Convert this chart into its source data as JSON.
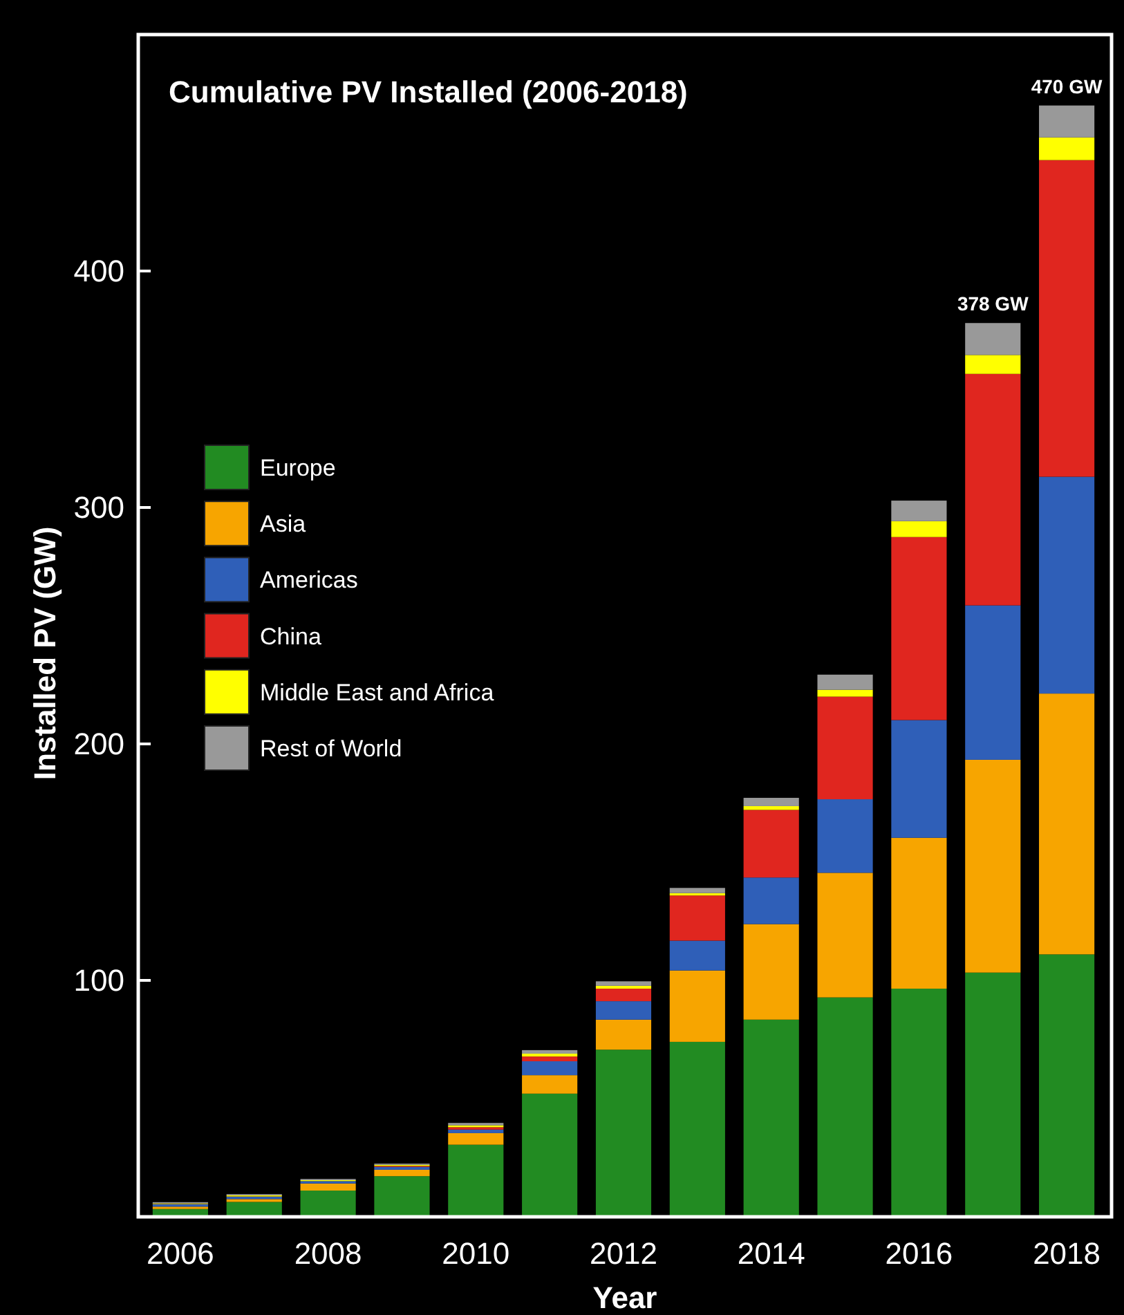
{
  "chart_data": {
    "type": "bar",
    "title": "Cumulative PV Installed (2006-2018)",
    "xlabel": "Year",
    "ylabel": "Installed PV (GW)",
    "categories": [
      "2006",
      null,
      "2008",
      null,
      "2010",
      null,
      "2012",
      null,
      "2014",
      null,
      "2016",
      null,
      "2018"
    ],
    "stacked": true,
    "ylim": [
      0,
      500
    ],
    "yticks": [
      100,
      200,
      300,
      400
    ],
    "legend": "left",
    "grid": false,
    "series": [
      {
        "name": "Europe",
        "color": "#228b22",
        "values": [
          3.3,
          6.3,
          11.1,
          17.2,
          30.5,
          52.1,
          70.7,
          74.0,
          83.4,
          92.8,
          96.5,
          103.3,
          111.0
        ]
      },
      {
        "name": "Asia",
        "color": "#f7a500",
        "values": [
          1.0,
          1.2,
          3.0,
          2.7,
          4.9,
          7.8,
          12.7,
          30.2,
          40.4,
          52.7,
          63.8,
          90.0,
          110.3
        ]
      },
      {
        "name": "Americas",
        "color": "#2f5fb8",
        "values": [
          1.0,
          1.0,
          1.0,
          1.2,
          1.5,
          5.9,
          7.8,
          12.6,
          19.7,
          31.1,
          49.8,
          65.3,
          91.7
        ]
      },
      {
        "name": "China",
        "color": "#e0261f",
        "values": [
          0.1,
          0.1,
          null,
          0.4,
          1.0,
          2.0,
          5.3,
          19.1,
          28.6,
          43.4,
          77.4,
          97.9,
          133.9
        ]
      },
      {
        "name": "Middle East and Africa",
        "color": "#ffff00",
        "values": [
          0.3,
          0.5,
          0.4,
          0.5,
          0.8,
          1.2,
          1.2,
          1.0,
          1.6,
          2.9,
          6.7,
          8.0,
          9.6
        ]
      },
      {
        "name": "Rest of World",
        "color": "#999999",
        "values": [
          0.5,
          0.5,
          0.5,
          0.5,
          1.0,
          1.5,
          1.9,
          2.2,
          3.5,
          6.4,
          8.7,
          13.5,
          13.5
        ]
      }
    ],
    "totals": [
      null,
      null,
      null,
      null,
      null,
      null,
      null,
      null,
      null,
      null,
      null,
      "378 GW",
      "470 GW"
    ]
  }
}
